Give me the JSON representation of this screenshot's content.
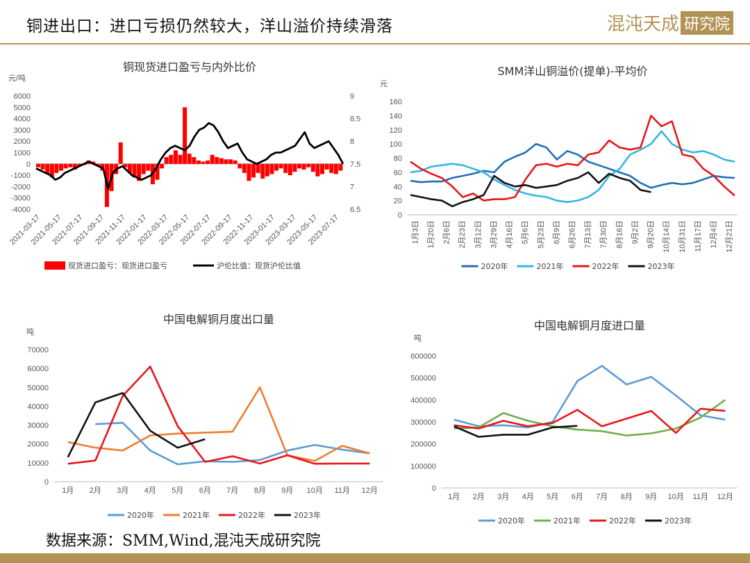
{
  "header": {
    "title": "铜进出口：进口亏损仍然较大，洋山溢价持续滑落",
    "logo_text": "混沌天成",
    "logo_box": "研究院"
  },
  "footer": {
    "source": "数据来源：SMM,Wind,混沌天成研究院"
  },
  "colors": {
    "accent": "#b39355",
    "red": "#ff0000",
    "black": "#000000",
    "y2020": "#1f6fb5",
    "y2021": "#33b5e5",
    "y2022": "#e8151b",
    "y2023": "#111111",
    "m2020": "#5b9bd5",
    "m2021": "#ed7d31",
    "m2021imp": "#70ad47"
  },
  "chart_data": [
    {
      "id": "pnl",
      "type": "bar",
      "title": "铜现货进口盈亏与内外比价",
      "ylabel": "元/吨",
      "ylim": [
        -4000,
        6000
      ],
      "y2lim": [
        6.5,
        9
      ],
      "yticks": [
        "6000",
        "5000",
        "4000",
        "3000",
        "2000",
        "1000",
        "0",
        "-1000",
        "-2000",
        "-3000",
        "-4000"
      ],
      "y2ticks": [
        "9",
        "8.5",
        "8",
        "7.5",
        "7",
        "6.5"
      ],
      "xticks": [
        "2021-03-17",
        "2021-05-17",
        "2021-07-17",
        "2021-09-17",
        "2021-11-17",
        "2022-01-17",
        "2022-03-17",
        "2022-05-17",
        "2022-07-17",
        "2022-09-17",
        "2022-11-17",
        "2023-01-17",
        "2023-03-17",
        "2023-05-17",
        "2023-07-17"
      ],
      "legend": [
        "现货进口盈亏：现货进口盈亏",
        "沪伦比值：现货沪伦比值"
      ],
      "bar_values": [
        -300,
        -500,
        -900,
        -1200,
        -800,
        -600,
        -400,
        -300,
        -500,
        -200,
        -100,
        300,
        200,
        -200,
        -600,
        -3800,
        -2400,
        -900,
        1900,
        -300,
        -800,
        -1200,
        -1500,
        -900,
        -600,
        -1800,
        -1400,
        -400,
        600,
        800,
        1200,
        800,
        5000,
        900,
        600,
        300,
        200,
        300,
        800,
        600,
        500,
        400,
        400,
        300,
        -400,
        -800,
        -1500,
        -1200,
        -800,
        -1300,
        -1100,
        -900,
        -600,
        -400,
        -800,
        -1000,
        -700,
        -400,
        -500,
        -300,
        -700,
        -1100,
        -900,
        -500,
        -800,
        -900,
        -600
      ],
      "ratio_values": [
        7.4,
        7.35,
        7.3,
        7.25,
        7.15,
        7.2,
        7.3,
        7.35,
        7.4,
        7.45,
        7.5,
        7.55,
        7.5,
        7.45,
        7.4,
        6.95,
        7.3,
        7.4,
        7.45,
        7.35,
        7.25,
        7.2,
        7.15,
        7.2,
        7.25,
        7.4,
        7.6,
        7.75,
        7.85,
        7.9,
        7.85,
        7.8,
        7.9,
        8.1,
        8.25,
        8.3,
        8.4,
        8.35,
        8.2,
        8.0,
        7.85,
        7.9,
        7.95,
        7.75,
        7.6,
        7.55,
        7.5,
        7.55,
        7.6,
        7.7,
        7.75,
        7.75,
        7.8,
        7.85,
        7.9,
        8.05,
        8.2,
        7.95,
        7.85,
        7.9,
        7.95,
        8.0,
        7.85,
        7.7,
        7.5
      ]
    },
    {
      "id": "yangshan",
      "type": "line",
      "title": "SMM洋山铜溢价(提单)-平均价",
      "ylabel": "元",
      "ylim": [
        0,
        160
      ],
      "yticks": [
        "160",
        "140",
        "120",
        "100",
        "80",
        "60",
        "40",
        "20",
        "0"
      ],
      "xticks": [
        "1月3日",
        "1月20日",
        "2月6日",
        "2月23日",
        "3月12日",
        "3月29日",
        "4月16日",
        "5月6日",
        "5月23日",
        "6月9日",
        "6月26日",
        "7月13日",
        "7月30日",
        "8月16日",
        "9月2日",
        "9月20日",
        "10月14日",
        "10月31日",
        "11月17日",
        "12月4日",
        "12月21日"
      ],
      "series": [
        {
          "name": "2020年",
          "color": "#1f6fb5",
          "values": [
            48,
            46,
            47,
            47,
            52,
            55,
            58,
            62,
            60,
            75,
            82,
            88,
            100,
            95,
            78,
            90,
            85,
            75,
            70,
            65,
            60,
            55,
            45,
            38,
            42,
            45,
            43,
            45,
            50,
            55,
            53,
            52
          ]
        },
        {
          "name": "2021年",
          "color": "#33b5e5",
          "values": [
            60,
            62,
            68,
            70,
            72,
            70,
            65,
            60,
            50,
            42,
            35,
            30,
            27,
            25,
            20,
            18,
            20,
            25,
            35,
            55,
            65,
            85,
            92,
            100,
            118,
            100,
            92,
            88,
            90,
            85,
            78,
            75
          ]
        },
        {
          "name": "2022年",
          "color": "#e8151b",
          "values": [
            75,
            65,
            58,
            52,
            40,
            25,
            30,
            20,
            22,
            22,
            25,
            50,
            70,
            72,
            68,
            72,
            70,
            85,
            88,
            105,
            95,
            92,
            95,
            140,
            125,
            132,
            85,
            82,
            65,
            55,
            40,
            27
          ]
        },
        {
          "name": "2023年",
          "color": "#111111",
          "values": [
            28,
            25,
            22,
            20,
            12,
            18,
            22,
            28,
            55,
            45,
            40,
            42,
            38,
            40,
            42,
            48,
            52,
            60,
            45,
            58,
            52,
            48,
            35,
            32
          ]
        }
      ]
    },
    {
      "id": "export",
      "type": "line",
      "title": "中国电解铜月度出口量",
      "ylabel": "吨",
      "ylim": [
        0,
        70000
      ],
      "yticks": [
        "70000",
        "60000",
        "50000",
        "40000",
        "30000",
        "20000",
        "10000",
        "0"
      ],
      "categories": [
        "1月",
        "2月",
        "3月",
        "4月",
        "5月",
        "6月",
        "7月",
        "8月",
        "9月",
        "10月",
        "11月",
        "12月"
      ],
      "series": [
        {
          "name": "2020年",
          "color": "#5b9bd5",
          "values": [
            null,
            30500,
            31200,
            16500,
            9200,
            10800,
            10500,
            11500,
            16500,
            19500,
            17000,
            15000
          ]
        },
        {
          "name": "2021年",
          "color": "#ed7d31",
          "values": [
            21000,
            18000,
            16500,
            24500,
            25500,
            26000,
            26500,
            50000,
            14000,
            11000,
            19000,
            15000
          ]
        },
        {
          "name": "2022年",
          "color": "#e8151b",
          "values": [
            9500,
            11200,
            45500,
            61000,
            29500,
            10500,
            13500,
            9600,
            14000,
            9500,
            9600,
            9600
          ]
        },
        {
          "name": "2023年",
          "color": "#111111",
          "values": [
            13000,
            42000,
            47000,
            27000,
            18000,
            22500,
            null,
            null,
            null,
            null,
            null,
            null
          ]
        }
      ]
    },
    {
      "id": "import",
      "type": "line",
      "title": "中国电解铜月度进口量",
      "ylabel": "吨",
      "ylim": [
        0,
        600000
      ],
      "yticks": [
        "600000",
        "500000",
        "400000",
        "300000",
        "200000",
        "100000",
        "0"
      ],
      "categories": [
        "1月",
        "2月",
        "3月",
        "4月",
        "5月",
        "6月",
        "7月",
        "8月",
        "9月",
        "10月",
        "11月",
        "12月"
      ],
      "series": [
        {
          "name": "2020年",
          "color": "#5b9bd5",
          "values": [
            310000,
            280000,
            285000,
            275000,
            300000,
            485000,
            555000,
            470000,
            505000,
            420000,
            330000,
            310000
          ]
        },
        {
          "name": "2021年",
          "color": "#70ad47",
          "values": [
            270000,
            275000,
            340000,
            305000,
            280000,
            265000,
            258000,
            238000,
            248000,
            270000,
            320000,
            400000
          ]
        },
        {
          "name": "2022年",
          "color": "#e8151b",
          "values": [
            285000,
            270000,
            305000,
            280000,
            295000,
            355000,
            280000,
            315000,
            350000,
            250000,
            360000,
            350000
          ]
        },
        {
          "name": "2023年",
          "color": "#111111",
          "values": [
            280000,
            232000,
            242000,
            242000,
            275000,
            282000,
            null,
            null,
            null,
            null,
            null,
            null
          ]
        }
      ]
    }
  ]
}
